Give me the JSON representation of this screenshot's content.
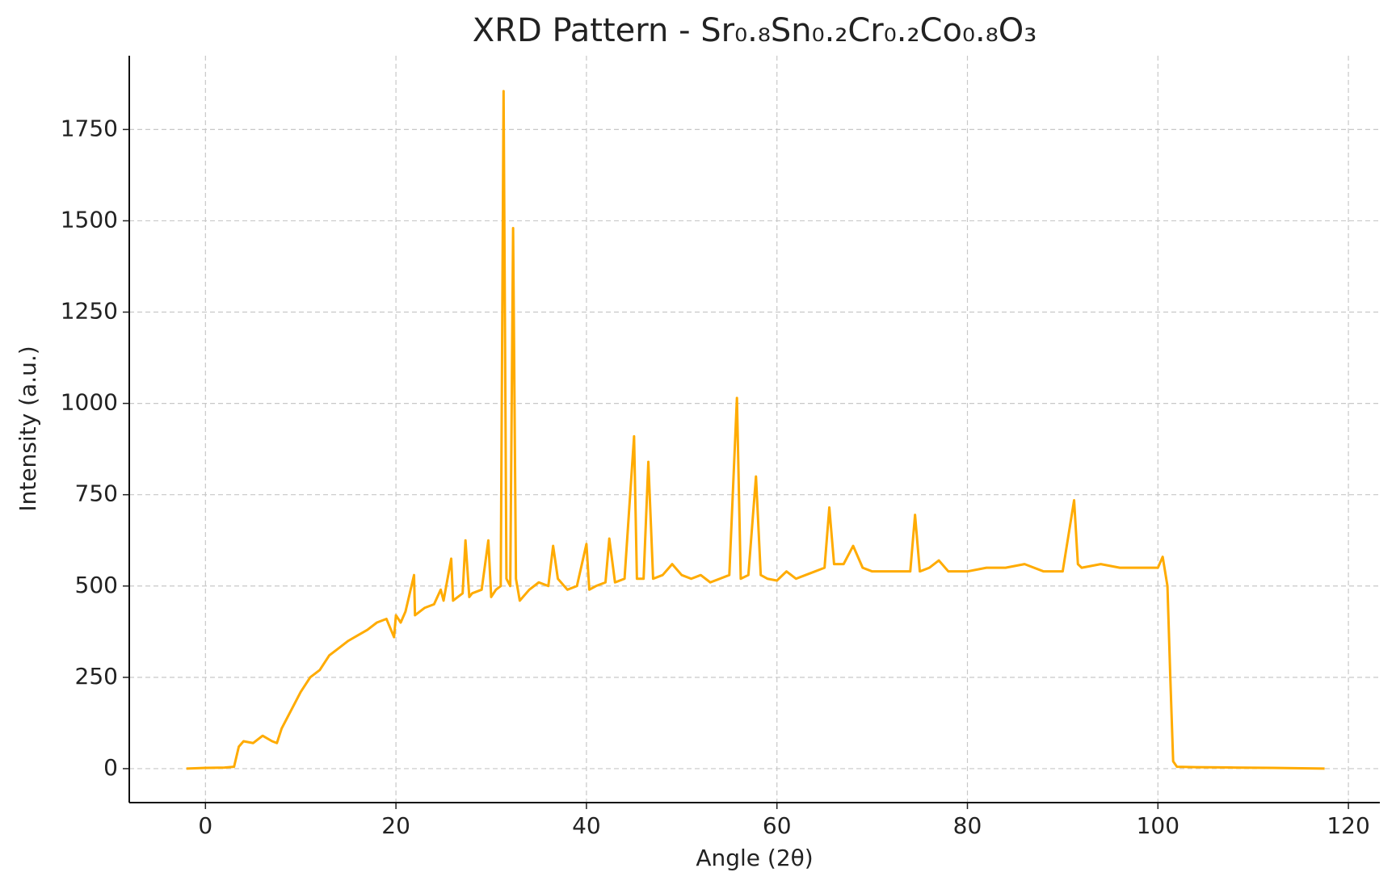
{
  "chart_data": {
    "type": "line",
    "title": "XRD Pattern - Sr₀.₈Sn₀.₂Cr₀.₂Co₀.₈O₃",
    "x_label": "Angle (2θ)",
    "y_label": "Intensity (a.u.)",
    "x": [
      -2,
      0,
      2,
      3,
      3.5,
      4,
      5,
      6,
      7,
      7.5,
      8,
      9,
      10,
      11,
      12,
      13,
      14,
      15,
      16,
      17,
      18,
      19,
      19.8,
      20,
      20.5,
      21,
      21.9,
      22,
      22.5,
      23,
      24,
      24.7,
      25,
      25.8,
      26,
      26.5,
      27,
      27.3,
      27.7,
      28,
      29,
      29.7,
      30,
      30.5,
      31,
      31.3,
      31.6,
      32,
      32.3,
      32.6,
      33,
      34,
      35,
      36,
      36.5,
      37,
      38,
      39,
      40,
      40.3,
      41,
      42,
      42.4,
      43,
      44,
      45,
      45.3,
      46,
      46.5,
      47,
      48,
      49,
      50,
      51,
      52,
      53,
      54,
      55,
      55.8,
      56.2,
      57,
      57.8,
      58.3,
      59,
      60,
      61,
      62,
      63,
      64,
      65,
      65.5,
      66,
      67,
      68,
      69,
      70,
      72,
      74,
      74.5,
      75,
      76,
      77,
      78,
      80,
      82,
      84,
      86,
      88,
      90,
      91.2,
      91.6,
      92,
      94,
      96,
      98,
      100,
      100.5,
      101,
      101.3,
      101.6,
      102,
      104,
      108,
      112,
      117.5
    ],
    "series": [
      {
        "name": "Intensity",
        "color": "#ffab00",
        "values": [
          0,
          2,
          3,
          5,
          60,
          75,
          70,
          90,
          75,
          70,
          110,
          160,
          210,
          250,
          270,
          310,
          330,
          350,
          365,
          380,
          400,
          410,
          360,
          420,
          400,
          430,
          530,
          420,
          430,
          440,
          450,
          490,
          460,
          575,
          460,
          470,
          480,
          625,
          470,
          480,
          490,
          625,
          470,
          490,
          500,
          1855,
          520,
          500,
          1480,
          520,
          460,
          490,
          510,
          500,
          610,
          520,
          490,
          500,
          615,
          490,
          500,
          510,
          630,
          510,
          520,
          910,
          520,
          520,
          840,
          520,
          530,
          560,
          530,
          520,
          530,
          510,
          520,
          530,
          1015,
          520,
          530,
          800,
          530,
          520,
          515,
          540,
          520,
          530,
          540,
          550,
          715,
          560,
          560,
          610,
          550,
          540,
          540,
          540,
          695,
          540,
          550,
          570,
          540,
          540,
          550,
          550,
          560,
          540,
          540,
          735,
          560,
          550,
          560,
          550,
          550,
          550,
          580,
          500,
          250,
          20,
          5,
          4,
          3,
          2,
          0
        ]
      }
    ],
    "xlim": [
      -8,
      123.3
    ],
    "ylim": [
      -93,
      1952
    ],
    "xticks": [
      0,
      20,
      40,
      60,
      80,
      100,
      120
    ],
    "yticks": [
      0,
      250,
      500,
      750,
      1000,
      1250,
      1500,
      1750
    ],
    "grid": true
  }
}
